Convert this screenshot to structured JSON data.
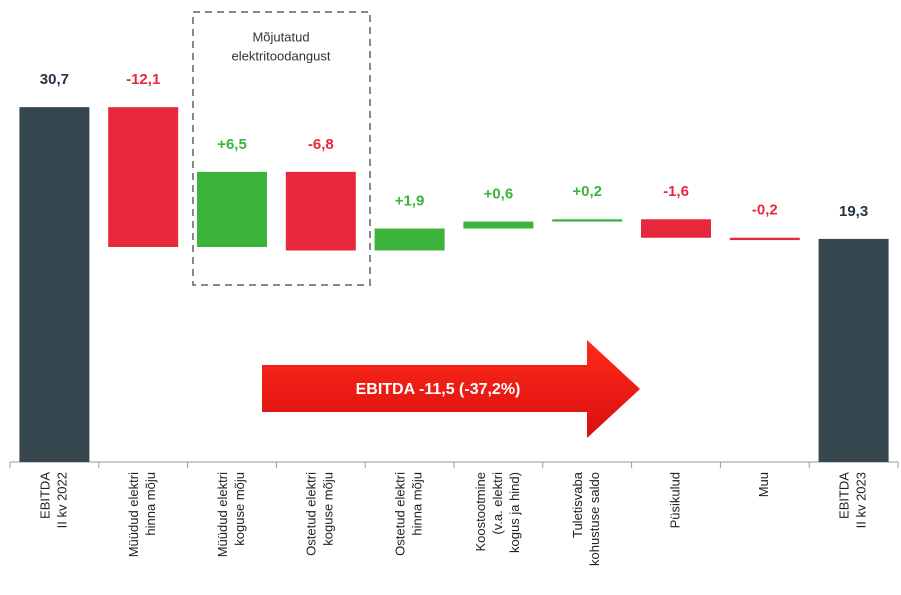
{
  "chart_data": {
    "type": "waterfall",
    "categories": [
      [
        "EBITDA",
        "II kv 2022"
      ],
      [
        "Müüdud elektri",
        "hinna mõju"
      ],
      [
        "Müüdud elektri",
        "koguse mõju"
      ],
      [
        "Ostetud elektri",
        "koguse mõju"
      ],
      [
        "Ostetud elektri",
        "hinna mõju"
      ],
      [
        "Koostootmine",
        "(v.a. elektri",
        "kogus ja hind)"
      ],
      [
        "Tuletisvaba",
        "kohustuse saldo"
      ],
      [
        "Püsikulud"
      ],
      [
        "Muu"
      ],
      [
        "EBITDA",
        "II kv 2023"
      ]
    ],
    "values": [
      30.7,
      -12.1,
      6.5,
      -6.8,
      1.9,
      0.6,
      0.2,
      -1.6,
      -0.2,
      19.3
    ],
    "value_labels": [
      "30,7",
      "-12,1",
      "+6,5",
      "-6,8",
      "+1,9",
      "+0,6",
      "+0,2",
      "-1,6",
      "-0,2",
      "19,3"
    ],
    "measure": [
      "absolute",
      "relative",
      "relative",
      "relative",
      "relative",
      "relative",
      "relative",
      "relative",
      "relative",
      "absolute"
    ],
    "colors": {
      "total": "#37474f",
      "increase": "#3cb43c",
      "decrease": "#e8283c"
    },
    "label_colors": {
      "total": "#243447",
      "increase": "#3cb43c",
      "decrease": "#e8283c"
    },
    "ylim": [
      0,
      34
    ],
    "group_label": [
      "Mõjutatud",
      "elektritoodangust"
    ],
    "arrow_label": "EBITDA -11,5 (-37,2%)"
  }
}
